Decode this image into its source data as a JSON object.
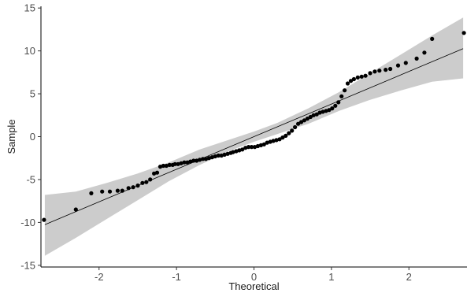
{
  "chart_data": {
    "type": "scatter",
    "title": "",
    "xlabel": "Theoretical",
    "ylabel": "Sample",
    "xlim": [
      -2.75,
      2.75
    ],
    "ylim": [
      -15.2,
      15.2
    ],
    "x_ticks": [
      -2,
      -1,
      0,
      1,
      2
    ],
    "x_tick_labels": [
      "-2",
      "-1",
      "0",
      "1",
      "2"
    ],
    "y_ticks": [
      -15,
      -10,
      -5,
      0,
      5,
      10,
      15
    ],
    "y_tick_labels": [
      "-15",
      "-10",
      "-5",
      "0",
      "5",
      "10",
      "15"
    ],
    "grid": false,
    "legend": "none",
    "reference_line": {
      "intercept": 0,
      "slope": 3.8
    },
    "confidence_band": {
      "x": [
        -2.7,
        -2.3,
        -1.9,
        -1.5,
        -1.1,
        -0.7,
        -0.3,
        0,
        0.3,
        0.7,
        1.1,
        1.5,
        1.9,
        2.3,
        2.7
      ],
      "lower": [
        -13.9,
        -11.8,
        -9.6,
        -7.4,
        -5.2,
        -3.3,
        -1.6,
        -0.6,
        0.3,
        1.5,
        3.0,
        4.3,
        5.4,
        6.4,
        6.8
      ],
      "upper": [
        -6.8,
        -6.4,
        -5.4,
        -4.3,
        -3.0,
        -1.5,
        -0.3,
        0.6,
        1.6,
        3.3,
        5.2,
        7.4,
        9.6,
        11.8,
        13.9
      ]
    },
    "colors": {
      "points": "#000000",
      "line": "#000000",
      "band": "#cccccc",
      "axis": "#000000"
    },
    "points": [
      {
        "x": -2.71,
        "y": -9.7
      },
      {
        "x": -2.3,
        "y": -8.5
      },
      {
        "x": -2.1,
        "y": -6.6
      },
      {
        "x": -1.96,
        "y": -6.4
      },
      {
        "x": -1.86,
        "y": -6.4
      },
      {
        "x": -1.76,
        "y": -6.3
      },
      {
        "x": -1.7,
        "y": -6.3
      },
      {
        "x": -1.62,
        "y": -6.0
      },
      {
        "x": -1.56,
        "y": -5.9
      },
      {
        "x": -1.5,
        "y": -5.7
      },
      {
        "x": -1.44,
        "y": -5.4
      },
      {
        "x": -1.39,
        "y": -5.3
      },
      {
        "x": -1.34,
        "y": -5.0
      },
      {
        "x": -1.29,
        "y": -4.3
      },
      {
        "x": -1.25,
        "y": -4.2
      },
      {
        "x": -1.21,
        "y": -3.5
      },
      {
        "x": -1.17,
        "y": -3.4
      },
      {
        "x": -1.13,
        "y": -3.4
      },
      {
        "x": -1.09,
        "y": -3.3
      },
      {
        "x": -1.05,
        "y": -3.3
      },
      {
        "x": -1.02,
        "y": -3.2
      },
      {
        "x": -0.98,
        "y": -3.2
      },
      {
        "x": -0.94,
        "y": -3.1
      },
      {
        "x": -0.9,
        "y": -3.0
      },
      {
        "x": -0.86,
        "y": -3.0
      },
      {
        "x": -0.82,
        "y": -2.9
      },
      {
        "x": -0.78,
        "y": -2.8
      },
      {
        "x": -0.74,
        "y": -2.8
      },
      {
        "x": -0.7,
        "y": -2.7
      },
      {
        "x": -0.66,
        "y": -2.6
      },
      {
        "x": -0.62,
        "y": -2.6
      },
      {
        "x": -0.58,
        "y": -2.5
      },
      {
        "x": -0.54,
        "y": -2.4
      },
      {
        "x": -0.5,
        "y": -2.3
      },
      {
        "x": -0.46,
        "y": -2.2
      },
      {
        "x": -0.42,
        "y": -2.2
      },
      {
        "x": -0.38,
        "y": -2.1
      },
      {
        "x": -0.34,
        "y": -2.0
      },
      {
        "x": -0.3,
        "y": -1.9
      },
      {
        "x": -0.27,
        "y": -1.8
      },
      {
        "x": -0.23,
        "y": -1.7
      },
      {
        "x": -0.19,
        "y": -1.6
      },
      {
        "x": -0.15,
        "y": -1.5
      },
      {
        "x": -0.11,
        "y": -1.3
      },
      {
        "x": -0.07,
        "y": -1.2
      },
      {
        "x": -0.03,
        "y": -1.2
      },
      {
        "x": 0.01,
        "y": -1.2
      },
      {
        "x": 0.05,
        "y": -1.1
      },
      {
        "x": 0.09,
        "y": -1.0
      },
      {
        "x": 0.13,
        "y": -0.9
      },
      {
        "x": 0.17,
        "y": -0.7
      },
      {
        "x": 0.21,
        "y": -0.6
      },
      {
        "x": 0.25,
        "y": -0.5
      },
      {
        "x": 0.29,
        "y": -0.4
      },
      {
        "x": 0.33,
        "y": -0.3
      },
      {
        "x": 0.37,
        "y": -0.1
      },
      {
        "x": 0.41,
        "y": 0.1
      },
      {
        "x": 0.45,
        "y": 0.4
      },
      {
        "x": 0.49,
        "y": 0.7
      },
      {
        "x": 0.53,
        "y": 1.1
      },
      {
        "x": 0.57,
        "y": 1.5
      },
      {
        "x": 0.61,
        "y": 1.7
      },
      {
        "x": 0.65,
        "y": 1.9
      },
      {
        "x": 0.69,
        "y": 2.1
      },
      {
        "x": 0.73,
        "y": 2.3
      },
      {
        "x": 0.77,
        "y": 2.5
      },
      {
        "x": 0.81,
        "y": 2.6
      },
      {
        "x": 0.85,
        "y": 2.8
      },
      {
        "x": 0.89,
        "y": 2.9
      },
      {
        "x": 0.93,
        "y": 3.0
      },
      {
        "x": 0.97,
        "y": 3.1
      },
      {
        "x": 1.01,
        "y": 3.3
      },
      {
        "x": 1.05,
        "y": 3.6
      },
      {
        "x": 1.09,
        "y": 4.0
      },
      {
        "x": 1.13,
        "y": 4.7
      },
      {
        "x": 1.17,
        "y": 5.4
      },
      {
        "x": 1.21,
        "y": 6.2
      },
      {
        "x": 1.25,
        "y": 6.5
      },
      {
        "x": 1.29,
        "y": 6.7
      },
      {
        "x": 1.34,
        "y": 6.9
      },
      {
        "x": 1.39,
        "y": 7.0
      },
      {
        "x": 1.44,
        "y": 7.1
      },
      {
        "x": 1.5,
        "y": 7.4
      },
      {
        "x": 1.56,
        "y": 7.6
      },
      {
        "x": 1.62,
        "y": 7.7
      },
      {
        "x": 1.7,
        "y": 7.8
      },
      {
        "x": 1.76,
        "y": 7.9
      },
      {
        "x": 1.86,
        "y": 8.3
      },
      {
        "x": 1.96,
        "y": 8.6
      },
      {
        "x": 2.1,
        "y": 9.1
      },
      {
        "x": 2.2,
        "y": 9.8
      },
      {
        "x": 2.3,
        "y": 11.4
      },
      {
        "x": 2.71,
        "y": 12.1
      }
    ]
  }
}
